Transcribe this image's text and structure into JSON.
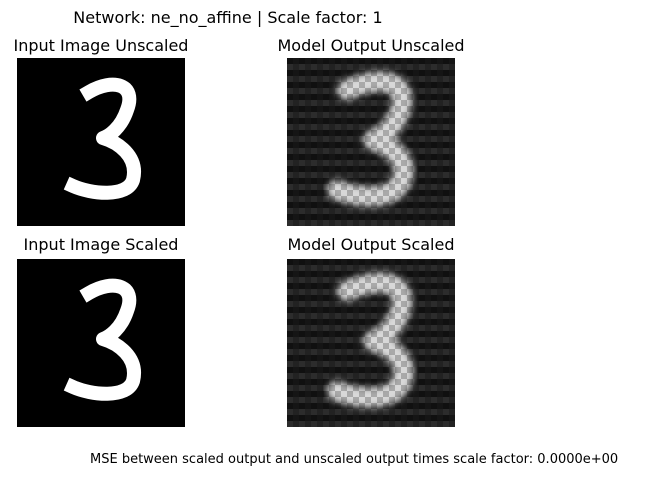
{
  "figure": {
    "suptitle": "Network: ne_no_affine | Scale factor: 1",
    "footnote": "MSE between scaled output and unscaled output times scale factor: 0.0000e+00"
  },
  "panels": [
    {
      "title": "Input Image Unscaled",
      "image": "grayscale handwritten digit 3, sharp"
    },
    {
      "title": "Model Output Unscaled",
      "image": "grayscale reconstruction of digit 3, blurry with horizontal banding"
    },
    {
      "title": "Input Image Scaled",
      "image": "grayscale handwritten digit 3, sharp"
    },
    {
      "title": "Model Output Scaled",
      "image": "grayscale reconstruction of digit 3, blurry with horizontal banding"
    }
  ],
  "colors": {
    "background": "#ffffff",
    "image_background": "#000000",
    "digit_stroke": "#ffffff",
    "output_background": "#1e1e1e",
    "output_band": "#2c2c2c",
    "output_stroke": "#d8d8d8"
  }
}
